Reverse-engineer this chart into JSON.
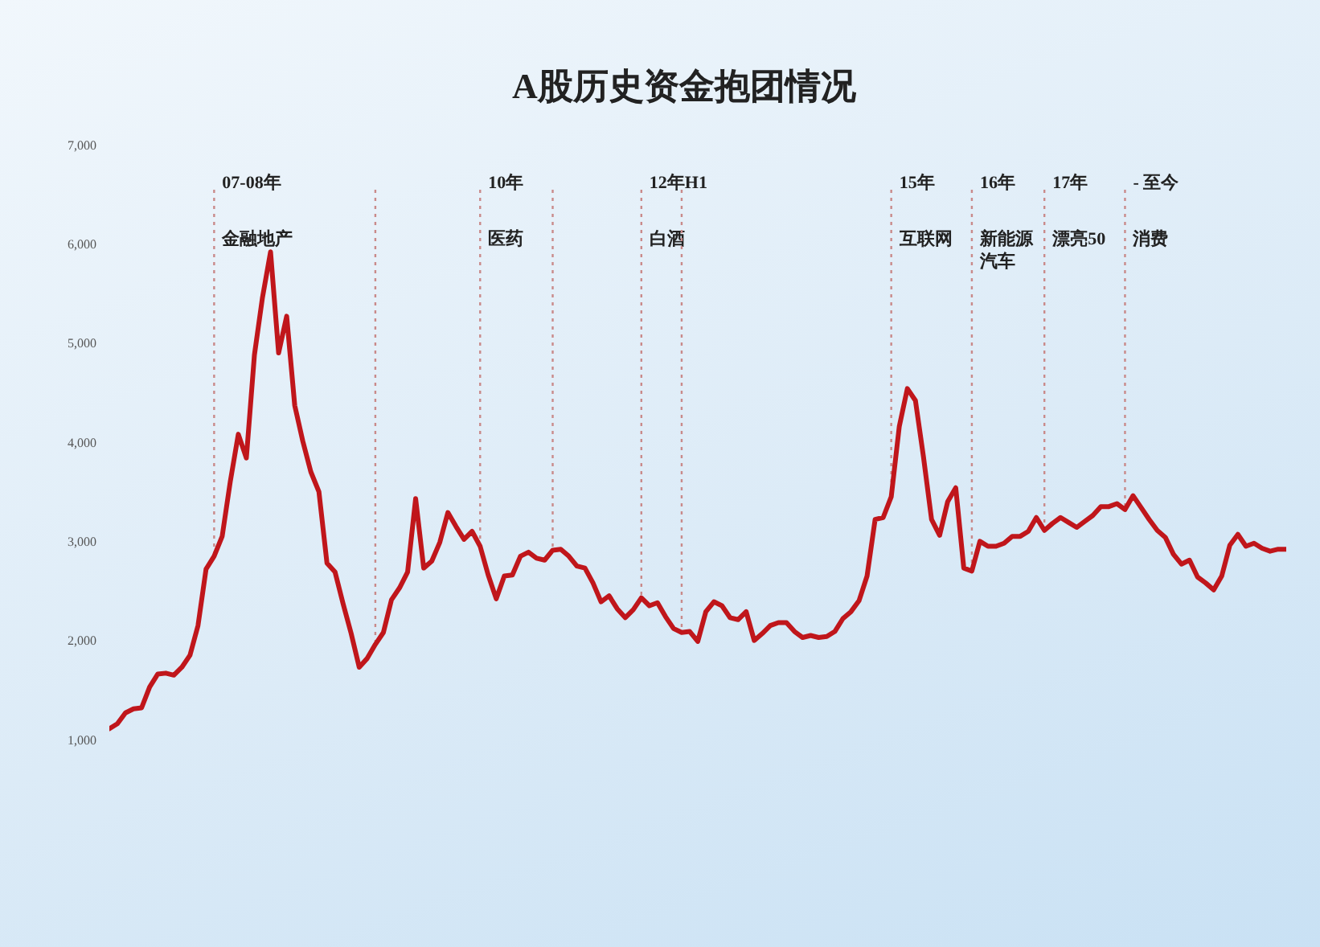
{
  "chart_data": {
    "type": "line",
    "title": "A股历史资金抱团情况",
    "categories": [
      null,
      null,
      null,
      null,
      null,
      null,
      null,
      null,
      null,
      null,
      null,
      null,
      null,
      null,
      null,
      null,
      null,
      null,
      null,
      null,
      null,
      null,
      null,
      null,
      null,
      null,
      null,
      null,
      null,
      null,
      null,
      null,
      null,
      null,
      null,
      null,
      null,
      null,
      null,
      null,
      null,
      null,
      null,
      null,
      null,
      null,
      null,
      null,
      null,
      null,
      null,
      null,
      null,
      null,
      null,
      null,
      null,
      null,
      null,
      null,
      null,
      null,
      null,
      null,
      null,
      null,
      null,
      null,
      null,
      null,
      null,
      null,
      null,
      null,
      null,
      null,
      null,
      null,
      null,
      null,
      null,
      null,
      null,
      null,
      null,
      null,
      null,
      null,
      null,
      null,
      null,
      null,
      null,
      null,
      null,
      null,
      null,
      null,
      null,
      null,
      null,
      null,
      null,
      null,
      null,
      null,
      null,
      null,
      null,
      null,
      null,
      null,
      null,
      null,
      null,
      null,
      null,
      null,
      null,
      null,
      null,
      null,
      null,
      null,
      null,
      null,
      null,
      null,
      null,
      null,
      null,
      null,
      null,
      null,
      null,
      null,
      null,
      null,
      null,
      null,
      null,
      null,
      null,
      null,
      null,
      null,
      null
    ],
    "series": [
      {
        "color": "#c0161b",
        "values": [
          1110,
          1160,
          1270,
          1310,
          1320,
          1530,
          1660,
          1670,
          1650,
          1730,
          1850,
          2150,
          2720,
          2850,
          3050,
          3600,
          4080,
          3840,
          4880,
          5460,
          5920,
          4900,
          5270,
          4370,
          4010,
          3700,
          3500,
          2780,
          2690,
          2370,
          2070,
          1730,
          1820,
          1960,
          2080,
          2410,
          2530,
          2690,
          3430,
          2730,
          2800,
          2990,
          3290,
          3150,
          3020,
          3100,
          2950,
          2660,
          2420,
          2650,
          2660,
          2850,
          2890,
          2830,
          2810,
          2910,
          2920,
          2850,
          2750,
          2730,
          2580,
          2390,
          2450,
          2320,
          2230,
          2310,
          2430,
          2350,
          2380,
          2240,
          2120,
          2080,
          2090,
          1990,
          2290,
          2390,
          2350,
          2230,
          2210,
          2290,
          2000,
          2070,
          2150,
          2180,
          2180,
          2090,
          2030,
          2050,
          2030,
          2040,
          2090,
          2220,
          2290,
          2400,
          2650,
          3220,
          3240,
          3450,
          4160,
          4540,
          4420,
          3850,
          3220,
          3060,
          3400,
          3540,
          2730,
          2700,
          3000,
          2950,
          2950,
          2980,
          3050,
          3050,
          3100,
          3240,
          3110,
          3180,
          3240,
          3190,
          3140,
          3200,
          3260,
          3350,
          3350,
          3380,
          3320,
          3460,
          3340,
          3220,
          3110,
          3040,
          2870,
          2770,
          2810,
          2640,
          2580,
          2510,
          2650,
          2960,
          3070,
          2950,
          2980,
          2930,
          2900,
          2920,
          2920
        ]
      }
    ],
    "ylim": [
      1000,
      7000
    ],
    "yticks": [
      {
        "value": 1000,
        "label": "1,000"
      },
      {
        "value": 2000,
        "label": "2,000"
      },
      {
        "value": 3000,
        "label": "3,000"
      },
      {
        "value": 4000,
        "label": "4,000"
      },
      {
        "value": 5000,
        "label": "5,000"
      },
      {
        "value": 6000,
        "label": "6,000"
      },
      {
        "value": 7000,
        "label": "7,000"
      }
    ],
    "annotations": [
      "07-08年",
      "金融地产",
      "10年",
      "医药",
      "12年H1",
      "白酒",
      "15年",
      "互联网",
      "16年",
      "新能源汽车",
      "17年",
      "漂亮50",
      "- 至今",
      "消费"
    ],
    "tick_labels": "y"
  }
}
